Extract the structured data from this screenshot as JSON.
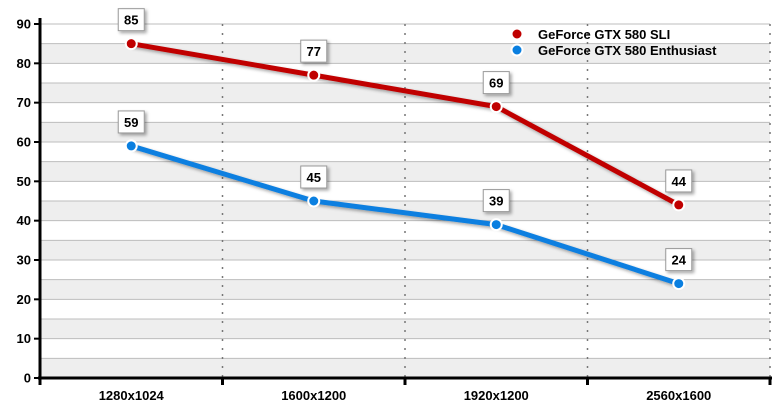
{
  "chart_data": {
    "type": "line",
    "title": "",
    "xlabel": "",
    "ylabel": "",
    "categories": [
      "1280x1024",
      "1600x1200",
      "1920x1200",
      "2560x1600"
    ],
    "ylim": [
      0,
      90
    ],
    "yticks": [
      0,
      10,
      20,
      30,
      40,
      50,
      60,
      70,
      80,
      90
    ],
    "grid": true,
    "legend_position": "top-right",
    "series": [
      {
        "name": "GeForce GTX 580 SLI",
        "color": "#c00000",
        "values": [
          85,
          77,
          69,
          44
        ]
      },
      {
        "name": "GeForce GTX 580 Enthusiast",
        "color": "#0a7fe0",
        "values": [
          59,
          45,
          39,
          24
        ]
      }
    ]
  }
}
